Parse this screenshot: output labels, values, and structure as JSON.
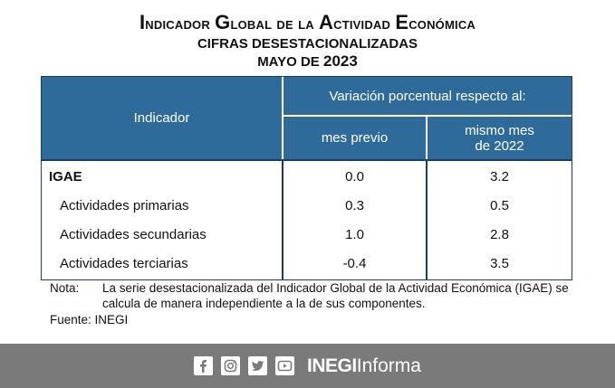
{
  "title": {
    "line1_first": "I",
    "line1_rest": "ndicador ",
    "line1_g": "G",
    "line1_g_rest": "lobal de la ",
    "line1_a": "A",
    "line1_a_rest": "ctividad ",
    "line1_e": "E",
    "line1_e_rest": "conómica",
    "line2": "CIFRAS DESESTACIONALIZADAS",
    "line3_month": "MAYO DE ",
    "line3_year": "2023"
  },
  "table": {
    "header_indicator": "Indicador",
    "header_variation": "Variación porcentual respecto al:",
    "header_prev": "mes previo",
    "header_same_line1": "mismo mes",
    "header_same_line2": "de 2022",
    "rows": [
      {
        "label": "IGAE",
        "prev": "0.0",
        "same": "3.2"
      },
      {
        "label": "Actividades primarias",
        "prev": "0.3",
        "same": "0.5"
      },
      {
        "label": "Actividades secundarias",
        "prev": "1.0",
        "same": "2.8"
      },
      {
        "label": "Actividades terciarias",
        "prev": "-0.4",
        "same": "3.5"
      }
    ]
  },
  "notes": {
    "label": "Nota:",
    "text": "La serie desestacionalizada del Indicador Global de la Actividad Económica (IGAE) se calcula de manera independiente a la de sus componentes.",
    "source": "Fuente: INEGI"
  },
  "footer": {
    "icons": [
      "facebook-icon",
      "instagram-icon",
      "twitter-icon",
      "youtube-icon"
    ],
    "brand_bold": "INEGI",
    "brand_light": "Informa",
    "bg_color": "#7a7a7a"
  },
  "colors": {
    "header_bg": "#2f6b9a",
    "border": "#1c3d60"
  }
}
